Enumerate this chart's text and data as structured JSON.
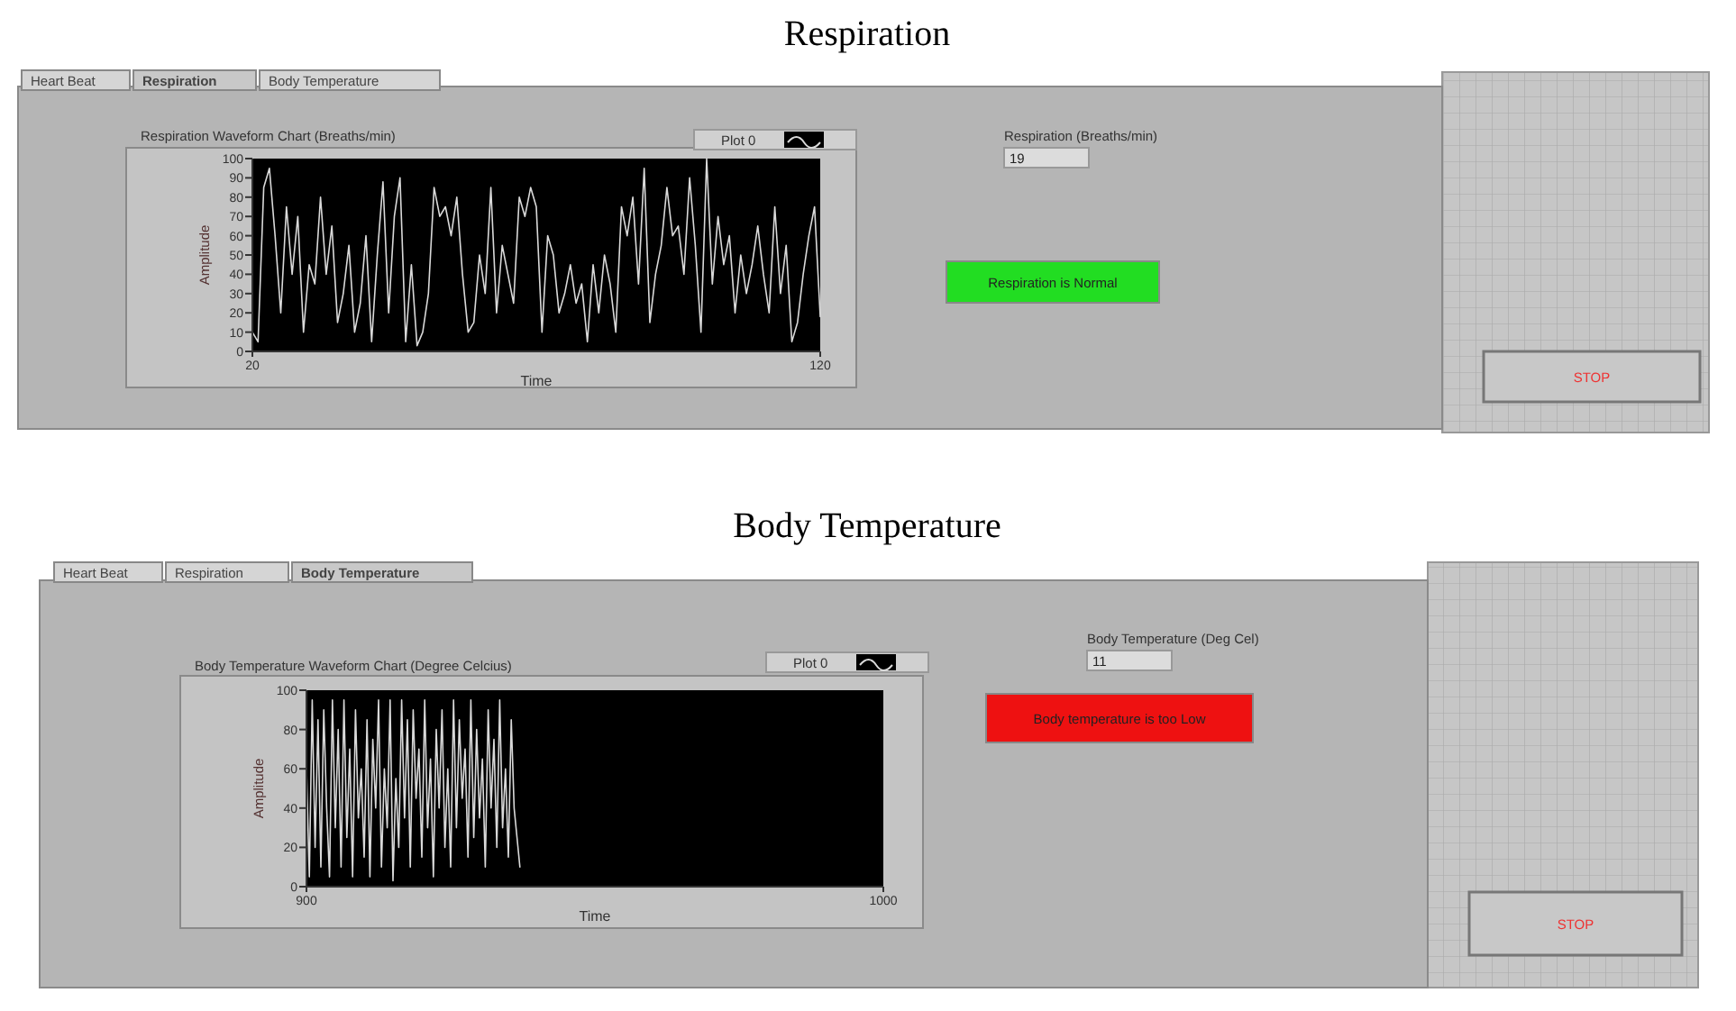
{
  "chart_data": [
    {
      "type": "line",
      "title": "Respiration",
      "subtitle": "Respiration Waveform Chart (Breaths/min)",
      "xlabel": "Time",
      "ylabel": "Amplitude",
      "legend": "top right",
      "x": [
        20,
        21,
        22,
        23,
        24,
        25,
        26,
        27,
        28,
        29,
        30,
        31,
        32,
        33,
        34,
        35,
        36,
        37,
        38,
        39,
        40,
        41,
        42,
        43,
        44,
        45,
        46,
        47,
        48,
        49,
        50,
        51,
        52,
        53,
        54,
        55,
        56,
        57,
        58,
        59,
        60,
        61,
        62,
        63,
        64,
        65,
        66,
        67,
        68,
        69,
        70,
        71,
        72,
        73,
        74,
        75,
        76,
        77,
        78,
        79,
        80,
        81,
        82,
        83,
        84,
        85,
        86,
        87,
        88,
        89,
        90,
        91,
        92,
        93,
        94,
        95,
        96,
        97,
        98,
        99,
        100,
        101,
        102,
        103,
        104,
        105,
        106,
        107,
        108,
        109,
        110,
        111,
        112,
        113,
        114,
        115,
        116,
        117,
        118,
        119,
        120
      ],
      "series": [
        {
          "name": "Plot 0",
          "color": "#d9d9d9",
          "values": [
            10,
            5,
            85,
            95,
            60,
            20,
            75,
            40,
            70,
            10,
            45,
            35,
            80,
            40,
            65,
            15,
            30,
            55,
            10,
            25,
            60,
            5,
            50,
            88,
            20,
            70,
            90,
            5,
            45,
            3,
            10,
            30,
            85,
            70,
            75,
            60,
            80,
            40,
            10,
            15,
            50,
            30,
            85,
            20,
            55,
            40,
            25,
            80,
            70,
            85,
            75,
            10,
            60,
            50,
            20,
            30,
            45,
            25,
            35,
            5,
            45,
            20,
            50,
            35,
            10,
            75,
            60,
            80,
            35,
            95,
            15,
            40,
            55,
            85,
            60,
            65,
            40,
            90,
            55,
            10,
            100,
            35,
            70,
            45,
            60,
            20,
            50,
            30,
            45,
            65,
            40,
            20,
            75,
            30,
            55,
            5,
            15,
            40,
            60,
            75,
            18
          ]
        }
      ],
      "xlim": [
        20,
        120
      ],
      "xticks": [
        20,
        120
      ],
      "ylim": [
        0,
        100
      ],
      "yticks": [
        0,
        10,
        20,
        30,
        40,
        50,
        60,
        70,
        80,
        90,
        100
      ],
      "annotations": [
        "Heart Beat",
        "Respiration",
        "Body Temperature",
        "Respiration (Breaths/min)",
        "19",
        "Respiration is Normal",
        "STOP"
      ]
    },
    {
      "type": "line",
      "title": "Body Temperature",
      "subtitle": "Body Temperature Waveform Chart (Degree Celcius)",
      "xlabel": "Time",
      "ylabel": "Amplitude",
      "legend": "top right",
      "x": [
        900,
        900.5,
        901,
        901.5,
        902,
        902.5,
        903,
        903.5,
        904,
        904.5,
        905,
        905.5,
        906,
        906.5,
        907,
        907.5,
        908,
        908.5,
        909,
        909.5,
        910,
        910.5,
        911,
        911.5,
        912,
        912.5,
        913,
        913.5,
        914,
        914.5,
        915,
        915.5,
        916,
        916.5,
        917,
        917.5,
        918,
        918.5,
        919,
        919.5,
        920,
        920.5,
        921,
        921.5,
        922,
        922.5,
        923,
        923.5,
        924,
        924.5,
        925,
        925.5,
        926,
        926.5,
        927,
        927.5,
        928,
        928.5,
        929,
        929.5,
        930,
        930.5,
        931,
        931.5,
        932,
        932.5,
        933,
        933.5,
        934,
        934.5,
        935,
        935.5,
        936,
        936.5,
        937
      ],
      "series": [
        {
          "name": "Plot 0",
          "color": "#d9d9d9",
          "values": [
            60,
            5,
            95,
            20,
            85,
            10,
            90,
            40,
            5,
            95,
            30,
            80,
            10,
            95,
            25,
            70,
            5,
            90,
            35,
            60,
            15,
            85,
            5,
            75,
            40,
            95,
            10,
            60,
            30,
            95,
            3,
            55,
            20,
            95,
            35,
            85,
            10,
            90,
            45,
            70,
            15,
            95,
            30,
            65,
            5,
            80,
            40,
            90,
            20,
            60,
            10,
            95,
            30,
            85,
            45,
            70,
            15,
            95,
            25,
            80,
            35,
            65,
            10,
            90,
            40,
            75,
            20,
            95,
            30,
            60,
            15,
            85,
            40,
            25,
            10
          ]
        }
      ],
      "xlim": [
        900,
        1000
      ],
      "xticks": [
        900,
        1000
      ],
      "ylim": [
        0,
        100
      ],
      "yticks": [
        0,
        20,
        40,
        60,
        80,
        100
      ],
      "annotations": [
        "Heart Beat",
        "Respiration",
        "Body Temperature",
        "Body Temperature (Deg Cel)",
        "11",
        "Body temperature is too Low",
        "STOP"
      ]
    }
  ]
}
